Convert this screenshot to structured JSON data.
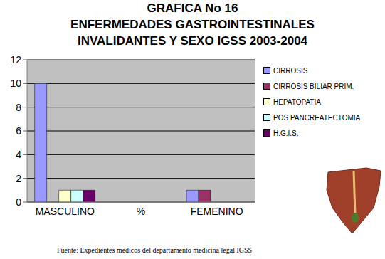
{
  "chart_data": {
    "type": "bar",
    "title": "GRAFICA No 16\nENFERMEDADES GASTROINTESTINALES\nINVALIDANTES Y SEXO IGSS 2003-2004",
    "categories": [
      "MASCULINO",
      "%",
      "FEMENINO"
    ],
    "series": [
      {
        "name": "CIRROSIS",
        "color": "#9999FF",
        "values": [
          10,
          null,
          1
        ]
      },
      {
        "name": "CIRROSIS BILIAR PRIM.",
        "color": "#993366",
        "values": [
          0,
          null,
          1
        ]
      },
      {
        "name": "HEPATOPATIA",
        "color": "#FFFFCC",
        "values": [
          1,
          null,
          0
        ]
      },
      {
        "name": "POS PANCREATECTOMIA",
        "color": "#CCFFFF",
        "values": [
          1,
          null,
          0
        ]
      },
      {
        "name": "H.G.I.S.",
        "color": "#660066",
        "values": [
          1,
          null,
          0
        ]
      }
    ],
    "ylim": [
      0,
      12
    ],
    "yticks": [
      0,
      2,
      4,
      6,
      8,
      10,
      12
    ],
    "grid": true,
    "legend": "right",
    "annotations": [
      "Fuente: Expedientes médicos del departamento medicina legal  IGSS"
    ]
  }
}
